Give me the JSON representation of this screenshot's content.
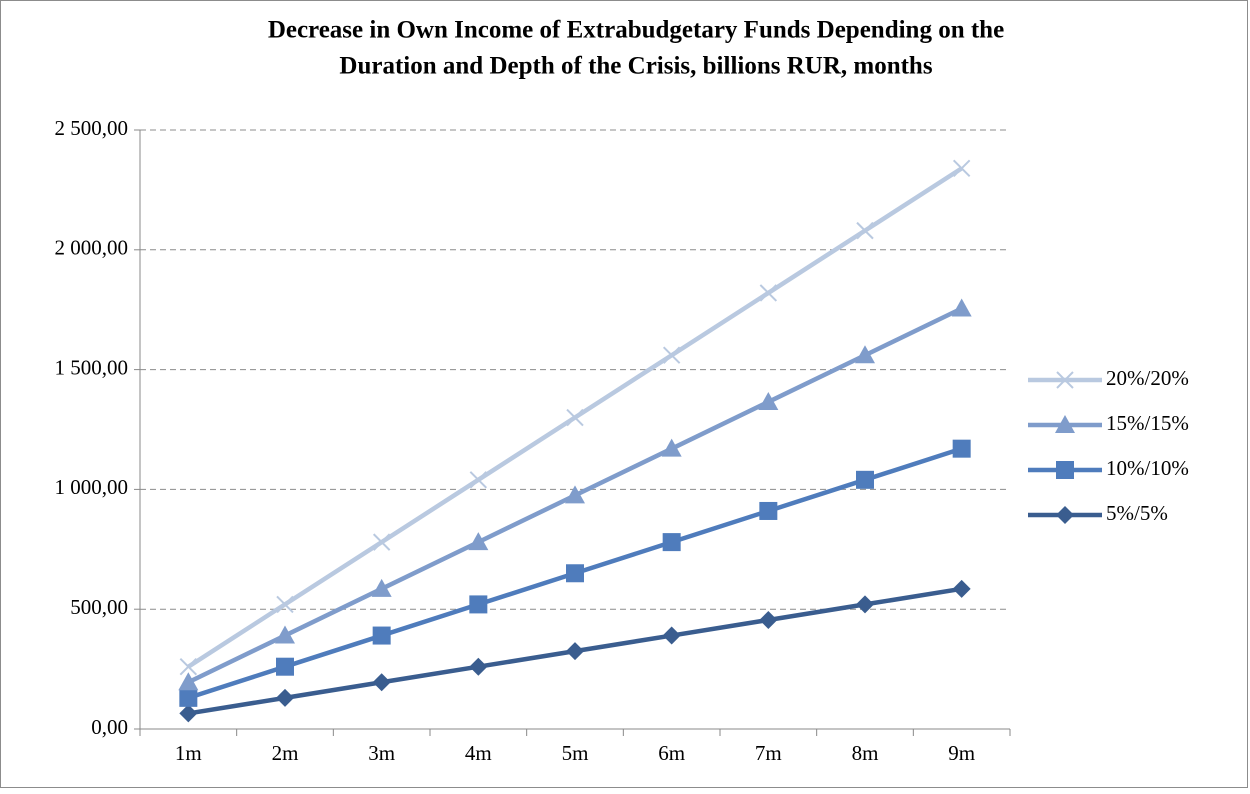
{
  "chart_data": {
    "type": "line",
    "title": [
      "Decrease in Own Income of Extrabudgetary Funds Depending on the",
      "Duration and Depth of the Crisis, billions RUR, months"
    ],
    "categories": [
      "1m",
      "2m",
      "3m",
      "4m",
      "5m",
      "6m",
      "7m",
      "8m",
      "9m"
    ],
    "series": [
      {
        "name": "20%/20%",
        "color": "#b9c9e0",
        "marker": "x",
        "values": [
          260,
          520,
          780,
          1040,
          1300,
          1560,
          1820,
          2080,
          2340
        ]
      },
      {
        "name": "15%/15%",
        "color": "#7f9ccb",
        "marker": "triangle",
        "values": [
          195,
          390,
          585,
          780,
          975,
          1170,
          1365,
          1560,
          1755
        ]
      },
      {
        "name": "10%/10%",
        "color": "#4f7cbc",
        "marker": "square",
        "values": [
          130,
          260,
          390,
          520,
          650,
          780,
          910,
          1040,
          1170
        ]
      },
      {
        "name": "5%/5%",
        "color": "#3a5d8f",
        "marker": "diamond",
        "values": [
          65,
          130,
          195,
          260,
          325,
          390,
          455,
          520,
          585
        ]
      }
    ],
    "ylim": [
      0,
      2500
    ],
    "yticks": [
      {
        "value": 0,
        "label": "0,00"
      },
      {
        "value": 500,
        "label": "500,00"
      },
      {
        "value": 1000,
        "label": "1 000,00"
      },
      {
        "value": 1500,
        "label": "1 500,00"
      },
      {
        "value": 2000,
        "label": "2 000,00"
      },
      {
        "value": 2500,
        "label": "2 500,00"
      }
    ],
    "grid": true,
    "legend": "right"
  }
}
